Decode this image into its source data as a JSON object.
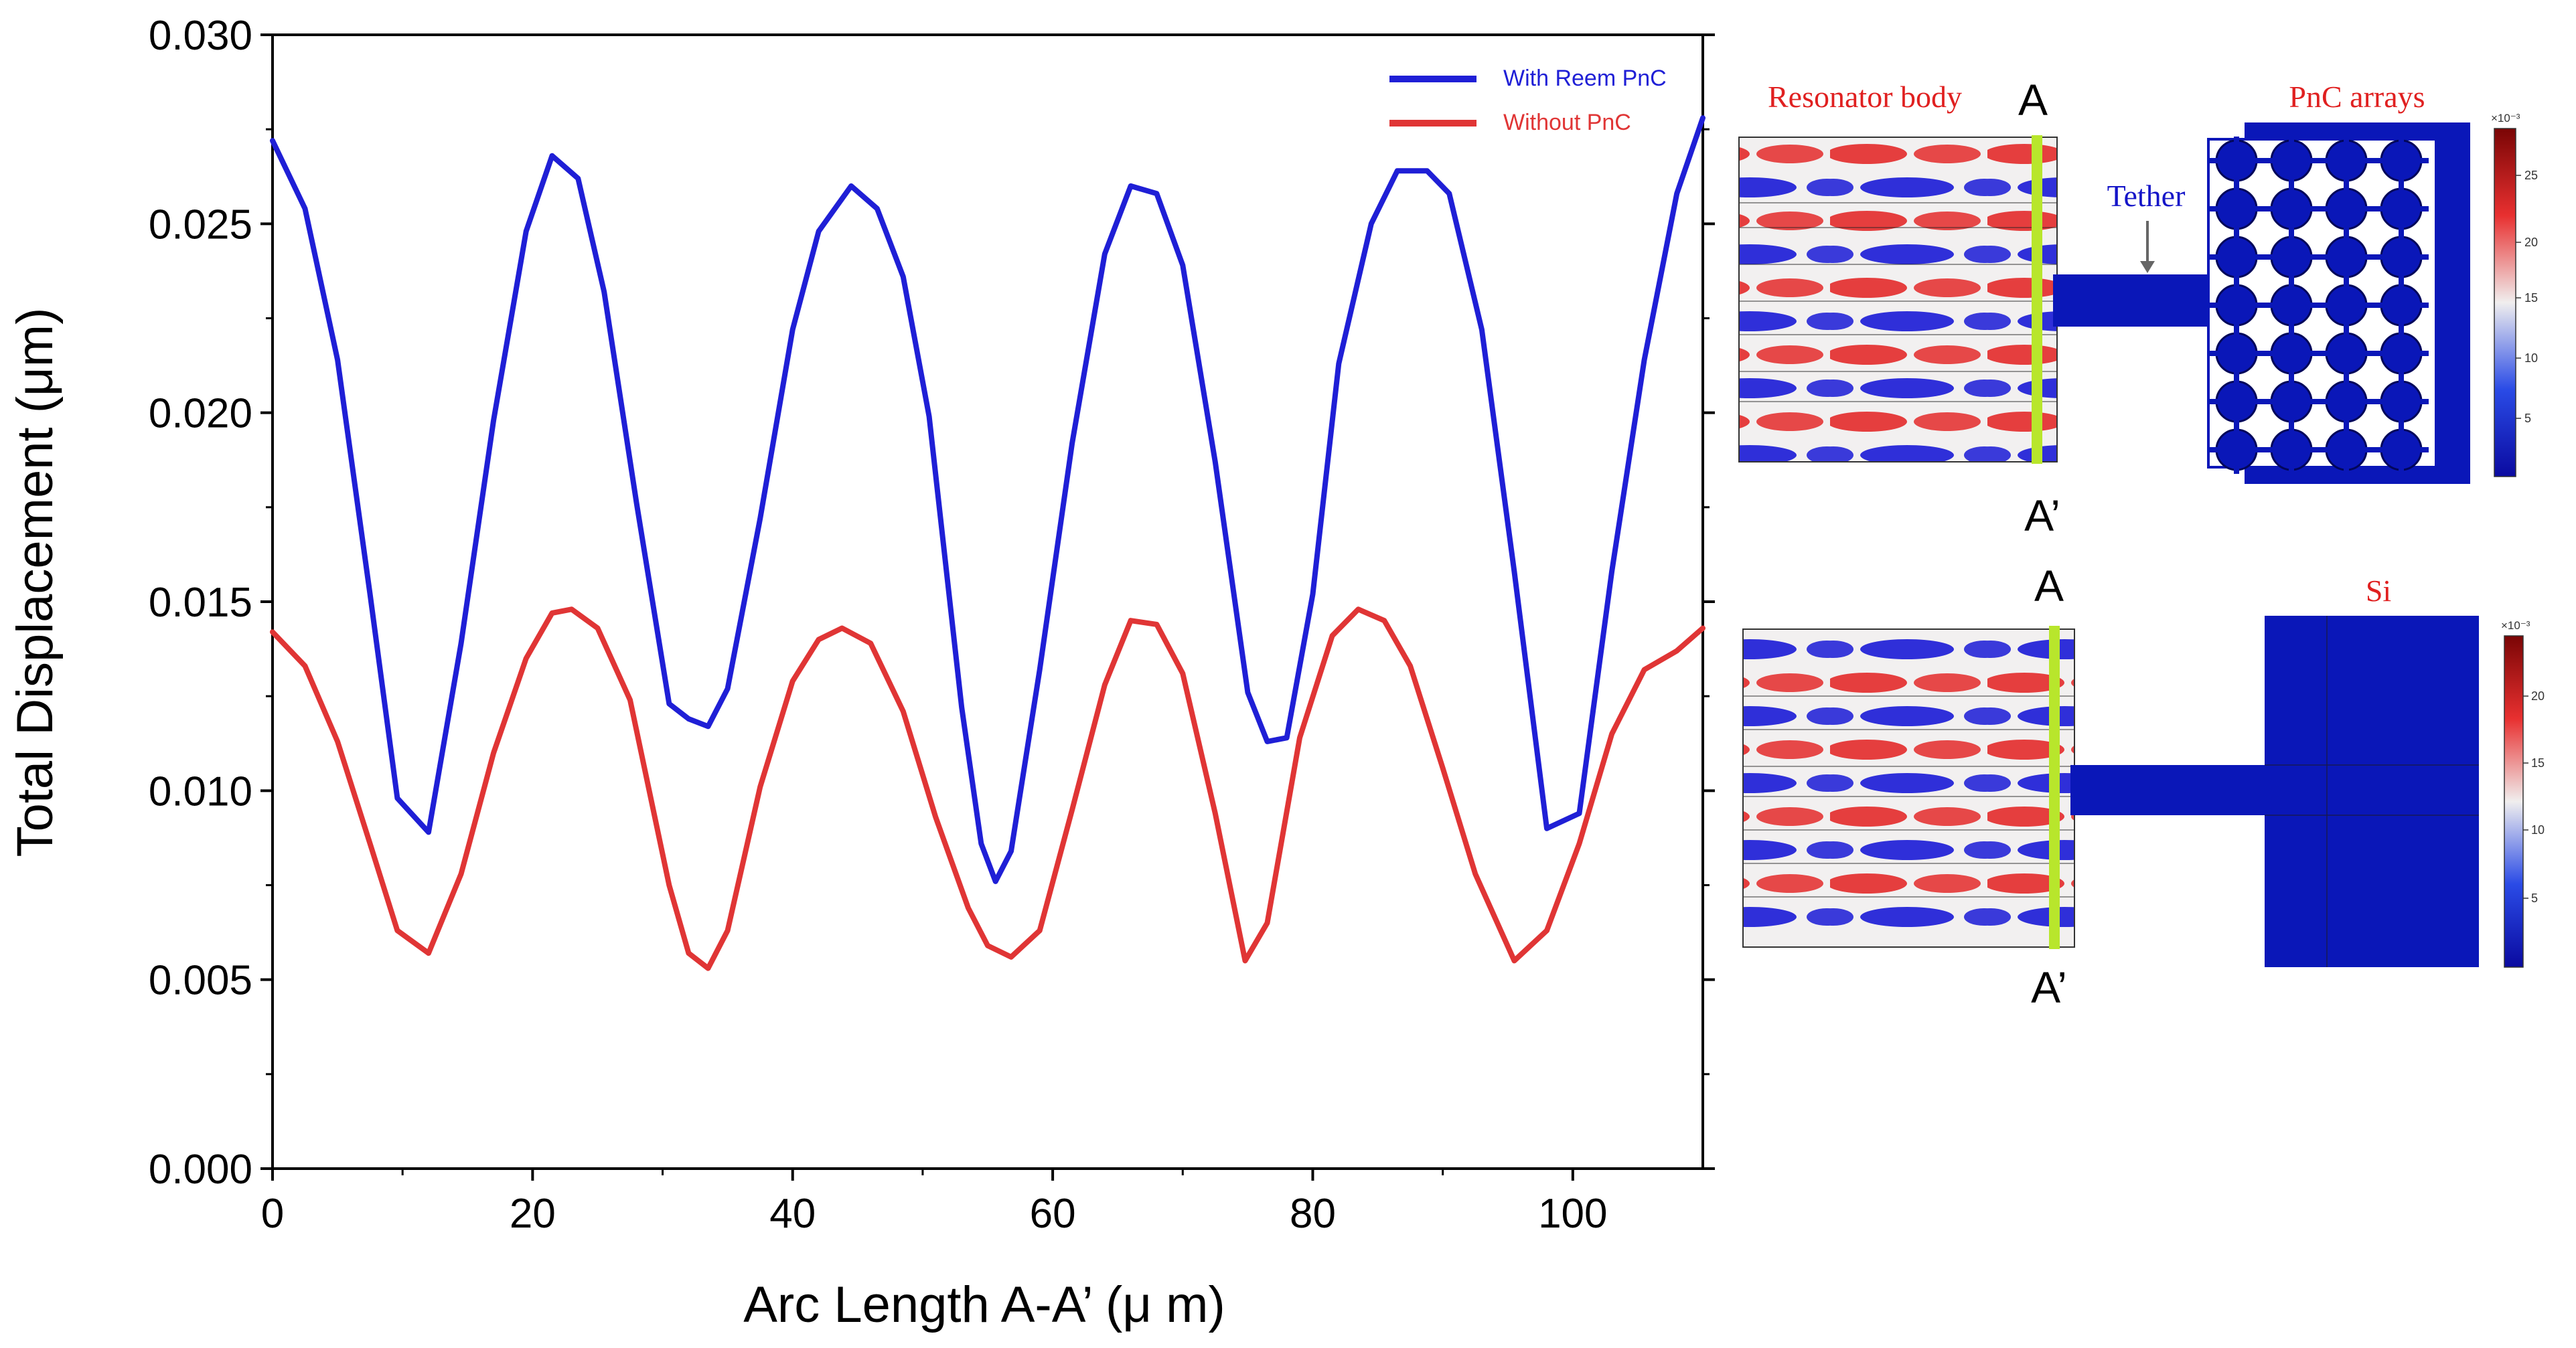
{
  "chart_data": {
    "type": "line",
    "xlabel": "Arc Length A-A’ (μ m)",
    "ylabel": "Total Displacement (μm)",
    "xlim": [
      0,
      110
    ],
    "ylim": [
      0,
      0.03
    ],
    "xticks": [
      0,
      20,
      40,
      60,
      80,
      100
    ],
    "xtick_labels": [
      "0",
      "20",
      "40",
      "60",
      "80",
      "100"
    ],
    "yticks": [
      0,
      0.005,
      0.01,
      0.015,
      0.02,
      0.025,
      0.03
    ],
    "ytick_labels": [
      "0.000",
      "0.005",
      "0.010",
      "0.015",
      "0.020",
      "0.025",
      "0.030"
    ],
    "legend_position": "top-right",
    "series": [
      {
        "name": "With Reem PnC",
        "color": "#1f1fd6",
        "x": [
          0,
          2.5,
          5,
          7.5,
          9.6,
          12,
          14.5,
          17,
          19.5,
          21.5,
          23.5,
          25.5,
          28,
          30.5,
          32,
          33.5,
          35,
          37.5,
          40,
          42,
          44.5,
          46.5,
          48.5,
          50.5,
          53,
          54.5,
          55.6,
          56.8,
          59,
          61.5,
          64,
          66,
          68,
          70,
          72.5,
          75,
          76.5,
          78,
          80,
          82,
          84.5,
          86.5,
          88.8,
          90.5,
          93,
          95.5,
          98,
          100.5,
          103,
          105.5,
          108,
          110
        ],
        "y": [
          0.0272,
          0.0254,
          0.0214,
          0.0152,
          0.0098,
          0.0089,
          0.0139,
          0.0198,
          0.0248,
          0.0268,
          0.0262,
          0.0232,
          0.0176,
          0.0123,
          0.0119,
          0.0117,
          0.0127,
          0.0172,
          0.0222,
          0.0248,
          0.026,
          0.0254,
          0.0236,
          0.0199,
          0.0122,
          0.0086,
          0.0076,
          0.0084,
          0.0132,
          0.0192,
          0.0242,
          0.026,
          0.0258,
          0.0239,
          0.0187,
          0.0126,
          0.0113,
          0.0114,
          0.0152,
          0.0213,
          0.025,
          0.0264,
          0.0264,
          0.0258,
          0.0222,
          0.0158,
          0.009,
          0.0094,
          0.0158,
          0.0214,
          0.0258,
          0.0278
        ]
      },
      {
        "name": "Without PnC",
        "color": "#e03535",
        "x": [
          0,
          2.5,
          5,
          7.5,
          9.6,
          12,
          14.5,
          17,
          19.5,
          21.5,
          23,
          25,
          27.5,
          30.5,
          32,
          33.5,
          35,
          37.5,
          40,
          42,
          43.8,
          46,
          48.5,
          51,
          53.5,
          55,
          56.8,
          59,
          61.5,
          64,
          66,
          68,
          70,
          72.5,
          74.8,
          76.5,
          79,
          81.5,
          83.5,
          85.5,
          87.5,
          90,
          92.5,
          95.5,
          98,
          100.5,
          103,
          105.5,
          108,
          110
        ],
        "y": [
          0.0142,
          0.0133,
          0.0113,
          0.0086,
          0.0063,
          0.0057,
          0.0078,
          0.011,
          0.0135,
          0.0147,
          0.0148,
          0.0143,
          0.0124,
          0.0075,
          0.0057,
          0.0053,
          0.0063,
          0.0101,
          0.0129,
          0.014,
          0.0143,
          0.0139,
          0.0121,
          0.0093,
          0.0069,
          0.0059,
          0.0056,
          0.0063,
          0.0095,
          0.0128,
          0.0145,
          0.0144,
          0.0131,
          0.0094,
          0.0055,
          0.0065,
          0.0114,
          0.0141,
          0.0148,
          0.0145,
          0.0133,
          0.0106,
          0.0078,
          0.0055,
          0.0063,
          0.0086,
          0.0115,
          0.0132,
          0.0137,
          0.0143
        ]
      }
    ]
  },
  "insets": {
    "top": {
      "resonator_label": "Resonator body",
      "a_label": "A",
      "a_prime_label": "A’",
      "tether_label": "Tether",
      "pnc_label": "PnC arrays",
      "colorbar_exponent": "×10⁻³",
      "colorbar_ticks": [
        "25",
        "20",
        "15",
        "10",
        "5"
      ]
    },
    "bottom": {
      "a_label": "A",
      "a_prime_label": "A’",
      "si_label": "Si",
      "colorbar_exponent": "×10⁻³",
      "colorbar_ticks": [
        "20",
        "15",
        "10",
        "5"
      ]
    }
  },
  "colors": {
    "field_red": "#e42a2a",
    "field_blue": "#1a1ad6",
    "field_white": "#f2f0f0",
    "substrate_blue": "#0a17b8",
    "cut_line": "#b8e62c",
    "label_red": "#e02020",
    "label_blue": "#1515c8",
    "axis": "#000000"
  }
}
